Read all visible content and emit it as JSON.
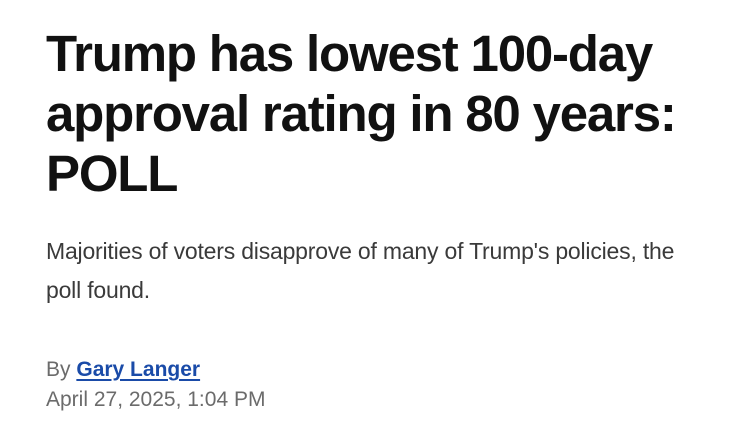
{
  "article": {
    "headline": "Trump has lowest 100-day approval rating in 80 years: POLL",
    "subhead": "Majorities of voters disapprove of many of Trump's policies, the poll found.",
    "byline": {
      "prefix": "By",
      "author": "Gary Langer"
    },
    "timestamp": "April 27, 2025, 1:04 PM"
  },
  "colors": {
    "headline": "#111111",
    "subhead": "#3a3a3a",
    "meta": "#6b6b6b",
    "author_link": "#1a4ba8"
  }
}
